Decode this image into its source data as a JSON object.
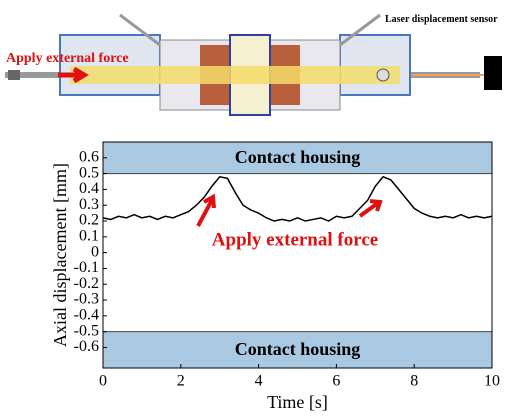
{
  "diagram": {
    "force_label": "Apply external force",
    "sensor_label": "Laser displacement sensor"
  },
  "chart_data": {
    "type": "line",
    "xlabel": "Time [s]",
    "ylabel": "Axial displacement [mm]",
    "xlim": [
      0,
      10
    ],
    "ylim": [
      -0.73,
      0.7
    ],
    "xticks": [
      0,
      2,
      4,
      6,
      8,
      10
    ],
    "yticks": [
      0.6,
      0.5,
      0.4,
      0.3,
      0.2,
      0.1,
      0,
      -0.1,
      -0.2,
      -0.3,
      -0.4,
      -0.5,
      -0.6
    ],
    "bands": [
      {
        "label": "Contact housing",
        "from": 0.5,
        "to": 0.7,
        "color": "#a9c8e2"
      },
      {
        "label": "Contact housing",
        "from": -0.73,
        "to": -0.5,
        "color": "#a9c8e2"
      }
    ],
    "annotations": [
      {
        "text": "Apply external force",
        "color": "#e01010"
      }
    ],
    "x": [
      0,
      0.2,
      0.4,
      0.6,
      0.8,
      1.0,
      1.2,
      1.4,
      1.6,
      1.8,
      2.0,
      2.2,
      2.4,
      2.6,
      2.8,
      3.0,
      3.2,
      3.4,
      3.6,
      3.8,
      4.0,
      4.2,
      4.4,
      4.6,
      4.8,
      5.0,
      5.2,
      5.4,
      5.6,
      5.8,
      6.0,
      6.2,
      6.4,
      6.6,
      6.8,
      7.0,
      7.2,
      7.4,
      7.6,
      7.8,
      8.0,
      8.2,
      8.4,
      8.6,
      8.8,
      9.0,
      9.2,
      9.4,
      9.6,
      9.8,
      10.0
    ],
    "series": [
      {
        "color": "#000000",
        "values": [
          0.22,
          0.21,
          0.23,
          0.22,
          0.24,
          0.22,
          0.23,
          0.21,
          0.23,
          0.22,
          0.24,
          0.26,
          0.3,
          0.35,
          0.42,
          0.48,
          0.47,
          0.38,
          0.3,
          0.27,
          0.25,
          0.22,
          0.2,
          0.21,
          0.2,
          0.22,
          0.2,
          0.21,
          0.22,
          0.2,
          0.23,
          0.22,
          0.23,
          0.28,
          0.33,
          0.42,
          0.48,
          0.46,
          0.4,
          0.34,
          0.28,
          0.25,
          0.23,
          0.22,
          0.23,
          0.22,
          0.24,
          0.22,
          0.23,
          0.22,
          0.23
        ]
      }
    ]
  }
}
